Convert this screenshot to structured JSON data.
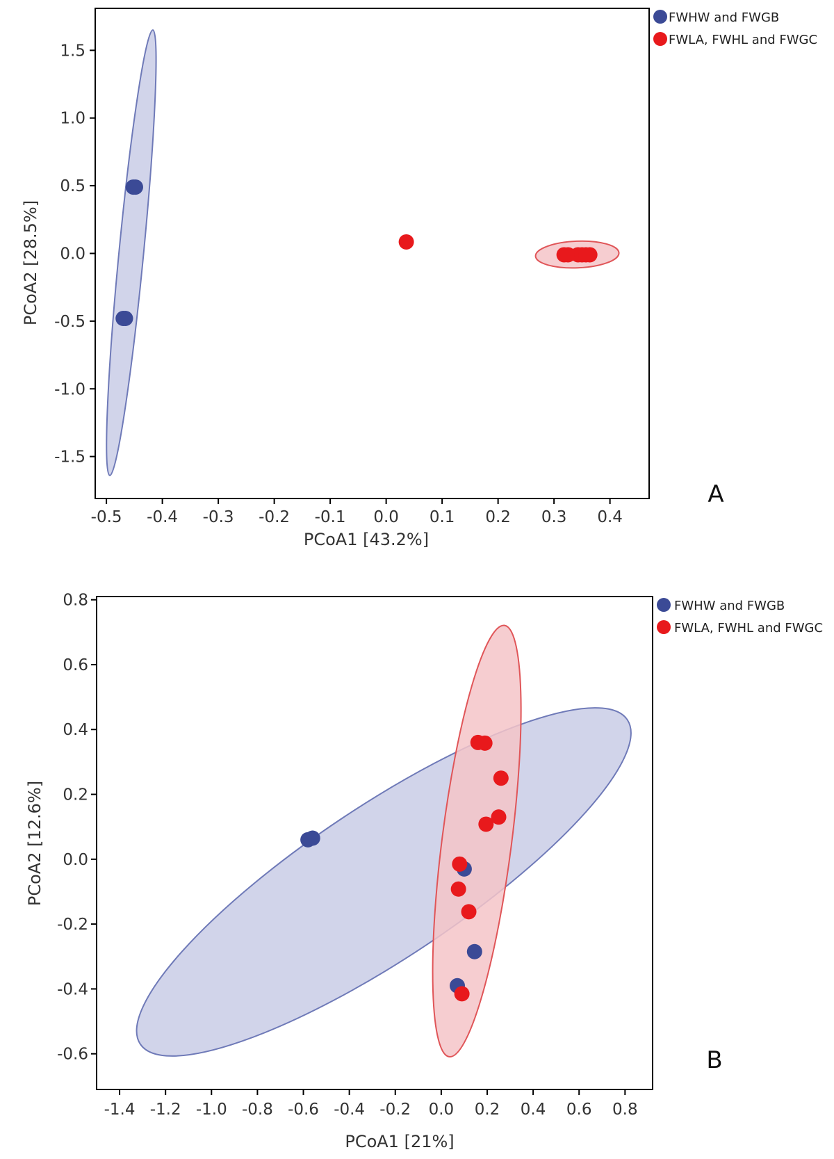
{
  "colors": {
    "group1_fill": "#3b4a96",
    "group1_ellipse_fill": "#c9cde6",
    "group1_ellipse_stroke": "#6f7ab8",
    "group2_fill": "#e8191c",
    "group2_ellipse_fill": "#f5c4c8",
    "group2_ellipse_stroke": "#e05558",
    "axis": "#000000"
  },
  "chart_data": [
    {
      "panel": "A",
      "type": "scatter",
      "xlabel": "PCoA1 [43.2%]",
      "ylabel": "PCoA2 [28.5%]",
      "xlim": [
        -0.52,
        0.47
      ],
      "ylim": [
        -1.81,
        1.81
      ],
      "x_ticks": [
        -0.5,
        -0.4,
        -0.3,
        -0.2,
        -0.1,
        0.0,
        0.1,
        0.2,
        0.3,
        0.4
      ],
      "x_tick_labels": [
        "-0.5",
        "-0.4",
        "-0.3",
        "-0.2",
        "-0.1",
        "0.0",
        "0.1",
        "0.2",
        "0.3",
        "0.4"
      ],
      "y_ticks": [
        1.5,
        1.0,
        0.5,
        0.0,
        -0.5,
        -1.0,
        -1.5
      ],
      "y_tick_labels": [
        "1.5",
        "1.0",
        "0.5",
        "0.0",
        "-0.5",
        "-1.0",
        "-1.5"
      ],
      "legend_position": "top-right",
      "series": [
        {
          "name": "FWHW and FWGB",
          "color_key": "group1",
          "points": [
            {
              "x": -0.448,
              "y": 0.49
            },
            {
              "x": -0.452,
              "y": 0.49
            },
            {
              "x": -0.466,
              "y": -0.48
            },
            {
              "x": -0.47,
              "y": -0.48
            }
          ],
          "ellipse": {
            "cx": -0.4555,
            "cy": 0.005,
            "x_extent": 0.0385,
            "y_extent": 1.645,
            "minor_frac": 0.055
          }
        },
        {
          "name": "FWLA, FWHL and FWGC",
          "color_key": "group2",
          "points": [
            {
              "x": 0.036,
              "y": 0.085
            },
            {
              "x": 0.318,
              "y": -0.01
            },
            {
              "x": 0.325,
              "y": -0.01
            },
            {
              "x": 0.343,
              "y": -0.01
            },
            {
              "x": 0.35,
              "y": -0.01
            },
            {
              "x": 0.357,
              "y": -0.01
            },
            {
              "x": 0.364,
              "y": -0.01
            }
          ],
          "ellipse": {
            "cx": 0.3415,
            "cy": -0.008,
            "x_extent": 0.0745,
            "y_extent": 0.012,
            "minor_frac": 0.32
          }
        }
      ]
    },
    {
      "panel": "B",
      "type": "scatter",
      "xlabel": "PCoA1 [21%]",
      "ylabel": "PCoA2 [12.6%]",
      "xlim": [
        -1.5,
        0.92
      ],
      "ylim": [
        -0.71,
        0.81
      ],
      "x_ticks": [
        -1.4,
        -1.2,
        -1.0,
        -0.8,
        -0.6,
        -0.4,
        -0.2,
        0.0,
        0.2,
        0.4,
        0.6,
        0.8
      ],
      "x_tick_labels": [
        "-1.4",
        "-1.2",
        "-1.0",
        "-0.8",
        "-0.6",
        "-0.4",
        "-0.2",
        "0.0",
        "0.2",
        "0.4",
        "0.6",
        "0.8"
      ],
      "y_ticks": [
        0.8,
        0.6,
        0.4,
        0.2,
        0.0,
        -0.2,
        -0.4,
        -0.6
      ],
      "y_tick_labels": [
        "0.8",
        "0.6",
        "0.4",
        "0.2",
        "0.0",
        "-0.2",
        "-0.4",
        "-0.6"
      ],
      "legend_position": "top-right",
      "series": [
        {
          "name": "FWHW and FWGB",
          "color_key": "group1",
          "points": [
            {
              "x": -0.58,
              "y": 0.06
            },
            {
              "x": -0.56,
              "y": 0.065
            },
            {
              "x": 0.1,
              "y": -0.03
            },
            {
              "x": 0.145,
              "y": -0.285
            },
            {
              "x": 0.07,
              "y": -0.39
            }
          ],
          "ellipse": {
            "cx": -0.25,
            "cy": -0.07,
            "x_extent": 1.06,
            "y_extent": 0.5,
            "minor_frac": 0.26
          }
        },
        {
          "name": "FWLA, FWHL and FWGC",
          "color_key": "group2",
          "points": [
            {
              "x": 0.16,
              "y": 0.36
            },
            {
              "x": 0.19,
              "y": 0.358
            },
            {
              "x": 0.26,
              "y": 0.25
            },
            {
              "x": 0.25,
              "y": 0.13
            },
            {
              "x": 0.195,
              "y": 0.108
            },
            {
              "x": 0.08,
              "y": -0.015
            },
            {
              "x": 0.075,
              "y": -0.092
            },
            {
              "x": 0.12,
              "y": -0.162
            },
            {
              "x": 0.09,
              "y": -0.415
            }
          ],
          "ellipse": {
            "cx": 0.155,
            "cy": 0.056,
            "x_extent": 0.12,
            "y_extent": 0.665,
            "minor_frac": 0.16
          }
        }
      ]
    }
  ]
}
